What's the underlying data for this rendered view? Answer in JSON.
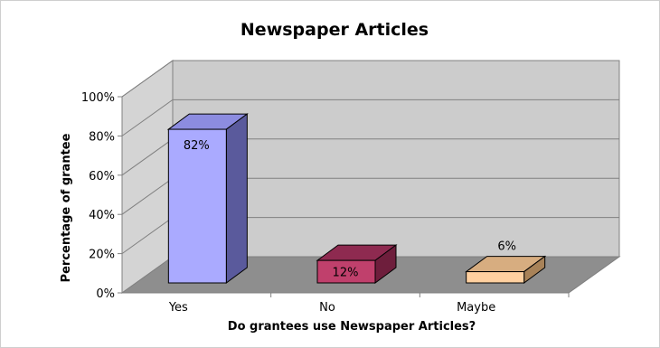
{
  "chart_data": {
    "type": "bar",
    "title": "Newspaper Articles",
    "xlabel": "Do grantees use Newspaper Articles?",
    "ylabel": "Percentage of grantee",
    "categories": [
      "Yes",
      "No",
      "Maybe"
    ],
    "values": [
      82,
      12,
      6
    ],
    "data_labels": [
      "82%",
      "12%",
      "6%"
    ],
    "ylim": [
      0,
      100
    ],
    "y_ticks": [
      "0%",
      "20%",
      "40%",
      "60%",
      "80%",
      "100%"
    ],
    "y_tick_values": [
      0,
      20,
      40,
      60,
      80,
      100
    ],
    "grid": true,
    "style": "3d-column",
    "bar_colors": [
      {
        "front": "#aaaaff",
        "top": "#8c8ce0",
        "side": "#5a5a9c"
      },
      {
        "front": "#c0406c",
        "top": "#8e2a50",
        "side": "#6e1e3c"
      },
      {
        "front": "#ffd0a0",
        "top": "#d7ad80",
        "side": "#a88258"
      }
    ],
    "wall_color": "#cccccc",
    "floor_color": "#8e8e8e"
  }
}
